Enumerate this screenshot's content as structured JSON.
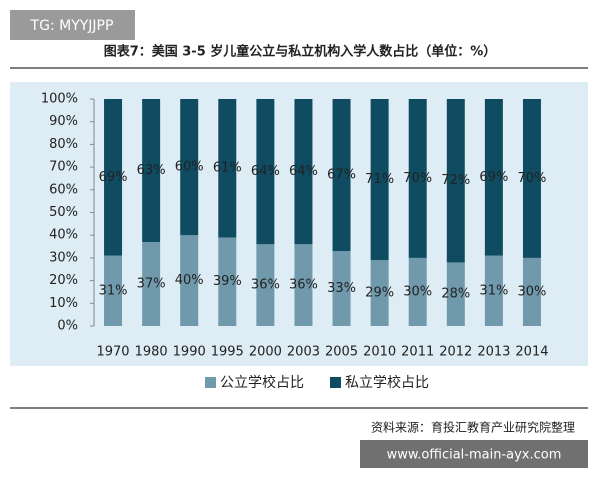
{
  "chart_data": {
    "type": "stacked_bar_100",
    "title": "图表7：美国 3-5 岁儿童公立与私立机构入学人数占比（单位：%）",
    "categories": [
      "1970",
      "1980",
      "1990",
      "1995",
      "2000",
      "2003",
      "2005",
      "2010",
      "2011",
      "2012",
      "2013",
      "2014"
    ],
    "series": [
      {
        "name": "公立学校占比",
        "color": "#7099ab",
        "values": [
          31,
          37,
          40,
          39,
          36,
          36,
          33,
          29,
          30,
          28,
          31,
          30
        ],
        "value_labels": [
          "31%",
          "37%",
          "40%",
          "39%",
          "36%",
          "36%",
          "33%",
          "29%",
          "30%",
          "28%",
          "31%",
          "30%"
        ]
      },
      {
        "name": "私立学校占比",
        "color": "#0f4c62",
        "values": [
          69,
          63,
          60,
          61,
          64,
          64,
          67,
          71,
          70,
          72,
          69,
          70
        ],
        "value_labels": [
          "69%",
          "63%",
          "60%",
          "61%",
          "64%",
          "64%",
          "67%",
          "71%",
          "70%",
          "72%",
          "69%",
          "70%"
        ]
      }
    ],
    "ylim": [
      0,
      100
    ],
    "yticks": [
      {
        "value": 0,
        "label": "0%"
      },
      {
        "value": 10,
        "label": "10%"
      },
      {
        "value": 20,
        "label": "20%"
      },
      {
        "value": 30,
        "label": "30%"
      },
      {
        "value": 40,
        "label": "40%"
      },
      {
        "value": 50,
        "label": "50%"
      },
      {
        "value": 60,
        "label": "60%"
      },
      {
        "value": 70,
        "label": "70%"
      },
      {
        "value": 80,
        "label": "80%"
      },
      {
        "value": 90,
        "label": "90%"
      },
      {
        "value": 100,
        "label": "100%"
      }
    ],
    "legend": "bottom",
    "source": "资料来源：育投汇教育产业研究院整理"
  },
  "overlays": {
    "tag": "TG: MYYJJPP",
    "url": "www.official-main-ayx.com"
  }
}
